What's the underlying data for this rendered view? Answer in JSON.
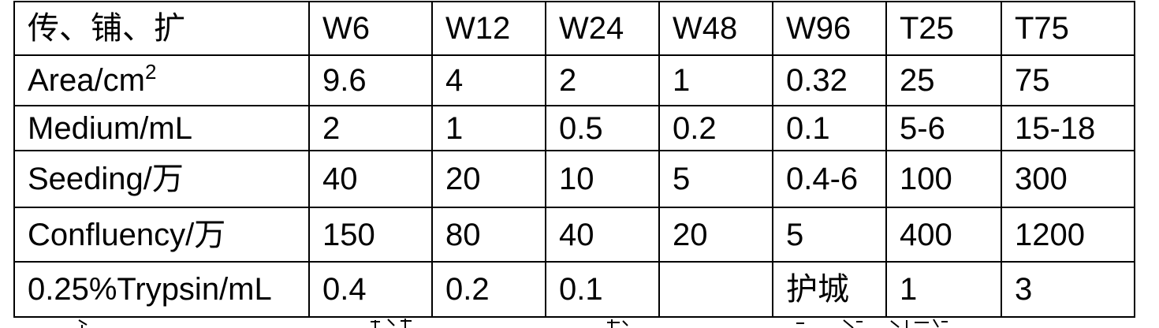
{
  "table": {
    "header": {
      "label": "传、铺、扩",
      "columns": [
        "W6",
        "W12",
        "W24",
        "W48",
        "W96",
        "T25",
        "T75"
      ]
    },
    "rows": [
      {
        "label": "Area/cm",
        "label_superscript": "2",
        "values": [
          "9.6",
          "4",
          "2",
          "1",
          "0.32",
          "25",
          "75"
        ]
      },
      {
        "label": "Medium/mL",
        "values": [
          "2",
          "1",
          "0.5",
          "0.2",
          "0.1",
          "5-6",
          "15-18"
        ]
      },
      {
        "label": "Seeding/万",
        "values": [
          "40",
          "20",
          "10",
          "5",
          "0.4-6",
          "100",
          "300"
        ]
      },
      {
        "label": "Confluency/万",
        "values": [
          "150",
          "80",
          "40",
          "20",
          "5",
          "400",
          "1200"
        ]
      },
      {
        "label": "0.25%Trypsin/mL",
        "values": [
          "0.4",
          "0.2",
          "0.1",
          "",
          "护城",
          "1",
          "3"
        ]
      }
    ]
  }
}
